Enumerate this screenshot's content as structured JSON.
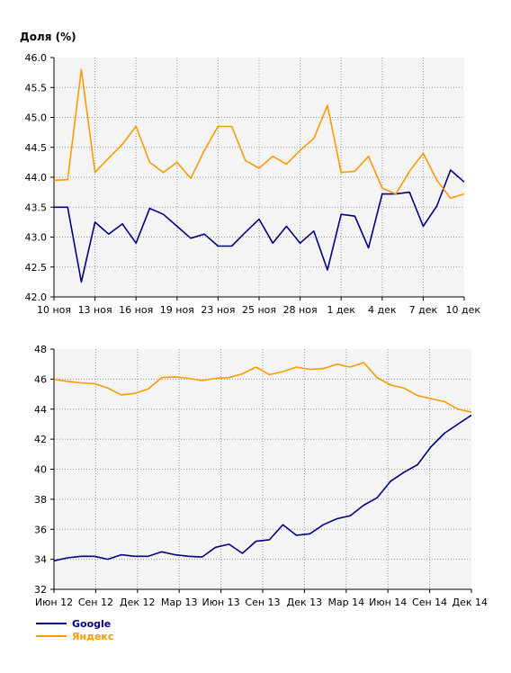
{
  "colors": {
    "google": "#000080",
    "yandex": "#ff9900",
    "plot_bg": "#f4f4f4",
    "grid": "#999999"
  },
  "chart_data": [
    {
      "type": "line",
      "title": "",
      "ylabel": "Доля (%)",
      "xlabel": "",
      "ylim": [
        42.0,
        46.0
      ],
      "yticks": [
        "42.0",
        "42.5",
        "43.0",
        "43.5",
        "44.0",
        "44.5",
        "45.0",
        "45.5",
        "46.0"
      ],
      "xticks": [
        "10 ноя",
        "13 ноя",
        "16 ноя",
        "19 ноя",
        "23 ноя",
        "25 ноя",
        "28 ноя",
        "1 дек",
        "4 дек",
        "7 дек",
        "10 дек"
      ],
      "grid": true,
      "series": [
        {
          "name": "Google",
          "color": "#000080",
          "values": [
            43.5,
            43.5,
            42.25,
            43.25,
            43.05,
            43.22,
            42.9,
            43.48,
            43.38,
            43.18,
            42.98,
            43.05,
            42.85,
            42.85,
            43.08,
            43.3,
            42.9,
            43.18,
            42.9,
            43.1,
            42.45,
            43.38,
            43.35,
            42.82,
            43.72,
            43.72,
            43.75,
            43.18,
            43.52,
            44.12,
            43.92
          ]
        },
        {
          "name": "Яндекс",
          "color": "#ff9900",
          "values": [
            43.95,
            43.96,
            45.8,
            44.08,
            44.32,
            44.55,
            44.85,
            44.25,
            44.08,
            44.25,
            43.98,
            44.45,
            44.85,
            44.85,
            44.28,
            44.15,
            44.35,
            44.22,
            44.45,
            44.65,
            45.2,
            44.08,
            44.1,
            44.35,
            43.82,
            43.72,
            44.1,
            44.4,
            43.95,
            43.65,
            43.72
          ]
        }
      ]
    },
    {
      "type": "line",
      "title": "",
      "xlabel": "",
      "ylabel": "",
      "ylim": [
        32,
        48
      ],
      "yticks": [
        "32",
        "34",
        "36",
        "38",
        "40",
        "42",
        "44",
        "46",
        "48"
      ],
      "xticks": [
        "Июн 12",
        "Сен 12",
        "Дек 12",
        "Мар 13",
        "Июн 13",
        "Сен 13",
        "Дек 13",
        "Мар 14",
        "Июн 14",
        "Сен 14",
        "Дек 14"
      ],
      "grid": true,
      "series": [
        {
          "name": "Google",
          "color": "#000080",
          "values": [
            33.9,
            34.1,
            34.2,
            34.2,
            34.0,
            34.3,
            34.2,
            34.2,
            34.5,
            34.3,
            34.2,
            34.15,
            34.8,
            35.0,
            34.4,
            35.2,
            35.3,
            36.3,
            35.6,
            35.7,
            36.3,
            36.7,
            36.9,
            37.6,
            38.1,
            39.2,
            39.8,
            40.3,
            41.5,
            42.4,
            43.0,
            43.6
          ]
        },
        {
          "name": "Яндекс",
          "color": "#ff9900",
          "values": [
            46.0,
            45.85,
            45.75,
            45.7,
            45.4,
            44.95,
            45.05,
            45.35,
            46.1,
            46.15,
            46.05,
            45.9,
            46.05,
            46.1,
            46.35,
            46.8,
            46.3,
            46.5,
            46.8,
            46.65,
            46.7,
            47.0,
            46.8,
            47.1,
            46.1,
            45.6,
            45.4,
            44.9,
            44.7,
            44.5,
            44.0,
            43.8
          ]
        }
      ]
    }
  ],
  "legend": [
    {
      "label": "Google",
      "color": "#000080"
    },
    {
      "label": "Яндекс",
      "color": "#ff9900"
    }
  ]
}
